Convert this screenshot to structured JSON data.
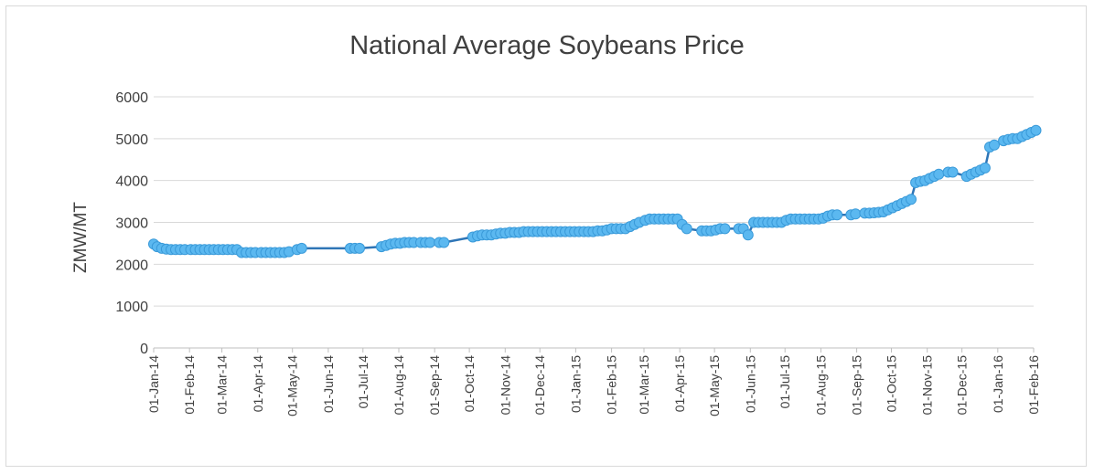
{
  "chart_data": {
    "type": "line",
    "title": "National Average Soybeans Price",
    "xlabel": "",
    "ylabel": "ZMW/MT",
    "ylim": [
      0,
      6000
    ],
    "yticks": [
      0,
      1000,
      2000,
      3000,
      4000,
      5000,
      6000
    ],
    "x_ticks": [
      "01-Jan-14",
      "01-Feb-14",
      "01-Mar-14",
      "01-Apr-14",
      "01-May-14",
      "01-Jun-14",
      "01-Jul-14",
      "01-Aug-14",
      "01-Sep-14",
      "01-Oct-14",
      "01-Nov-14",
      "01-Dec-14",
      "01-Jan-15",
      "01-Feb-15",
      "01-Mar-15",
      "01-Apr-15",
      "01-May-15",
      "01-Jun-15",
      "01-Jul-15",
      "01-Aug-15",
      "01-Sep-15",
      "01-Oct-15",
      "01-Nov-15",
      "01-Dec-15",
      "01-Jan-16",
      "01-Feb-16"
    ],
    "grid": "horizontal",
    "legend": "none",
    "colors": {
      "line": "#2e75b6",
      "marker": "#5bb8f0",
      "grid": "#d9d9d9",
      "axis": "#bfbfbf",
      "text": "#404040"
    },
    "series": [
      {
        "points": [
          [
            "2014-01-01",
            2480
          ],
          [
            "2014-01-04",
            2420
          ],
          [
            "2014-01-08",
            2380
          ],
          [
            "2014-01-12",
            2360
          ],
          [
            "2014-01-16",
            2350
          ],
          [
            "2014-01-20",
            2350
          ],
          [
            "2014-01-24",
            2350
          ],
          [
            "2014-01-28",
            2350
          ],
          [
            "2014-02-02",
            2350
          ],
          [
            "2014-02-06",
            2350
          ],
          [
            "2014-02-10",
            2350
          ],
          [
            "2014-02-14",
            2350
          ],
          [
            "2014-02-18",
            2350
          ],
          [
            "2014-02-22",
            2350
          ],
          [
            "2014-02-26",
            2350
          ],
          [
            "2014-03-02",
            2350
          ],
          [
            "2014-03-06",
            2350
          ],
          [
            "2014-03-10",
            2350
          ],
          [
            "2014-03-14",
            2350
          ],
          [
            "2014-03-18",
            2280
          ],
          [
            "2014-03-22",
            2280
          ],
          [
            "2014-03-26",
            2280
          ],
          [
            "2014-03-30",
            2280
          ],
          [
            "2014-04-04",
            2280
          ],
          [
            "2014-04-08",
            2280
          ],
          [
            "2014-04-12",
            2280
          ],
          [
            "2014-04-16",
            2280
          ],
          [
            "2014-04-20",
            2280
          ],
          [
            "2014-04-24",
            2280
          ],
          [
            "2014-04-28",
            2300
          ],
          [
            "2014-05-05",
            2350
          ],
          [
            "2014-05-09",
            2380
          ],
          [
            "2014-06-20",
            2380
          ],
          [
            "2014-06-24",
            2380
          ],
          [
            "2014-06-28",
            2380
          ],
          [
            "2014-07-17",
            2420
          ],
          [
            "2014-07-21",
            2450
          ],
          [
            "2014-07-25",
            2480
          ],
          [
            "2014-07-29",
            2500
          ],
          [
            "2014-08-02",
            2500
          ],
          [
            "2014-08-06",
            2520
          ],
          [
            "2014-08-10",
            2520
          ],
          [
            "2014-08-14",
            2520
          ],
          [
            "2014-08-20",
            2520
          ],
          [
            "2014-08-24",
            2520
          ],
          [
            "2014-08-28",
            2520
          ],
          [
            "2014-09-05",
            2520
          ],
          [
            "2014-09-09",
            2520
          ],
          [
            "2014-10-04",
            2650
          ],
          [
            "2014-10-08",
            2680
          ],
          [
            "2014-10-12",
            2700
          ],
          [
            "2014-10-16",
            2700
          ],
          [
            "2014-10-20",
            2700
          ],
          [
            "2014-10-24",
            2720
          ],
          [
            "2014-10-28",
            2740
          ],
          [
            "2014-11-01",
            2740
          ],
          [
            "2014-11-05",
            2760
          ],
          [
            "2014-11-09",
            2760
          ],
          [
            "2014-11-13",
            2760
          ],
          [
            "2014-11-17",
            2780
          ],
          [
            "2014-11-21",
            2780
          ],
          [
            "2014-11-25",
            2780
          ],
          [
            "2014-11-29",
            2780
          ],
          [
            "2014-12-03",
            2780
          ],
          [
            "2014-12-07",
            2780
          ],
          [
            "2014-12-11",
            2780
          ],
          [
            "2014-12-15",
            2780
          ],
          [
            "2014-12-19",
            2780
          ],
          [
            "2014-12-23",
            2780
          ],
          [
            "2014-12-27",
            2780
          ],
          [
            "2014-12-31",
            2780
          ],
          [
            "2015-01-04",
            2780
          ],
          [
            "2015-01-08",
            2780
          ],
          [
            "2015-01-12",
            2780
          ],
          [
            "2015-01-16",
            2780
          ],
          [
            "2015-01-20",
            2800
          ],
          [
            "2015-01-24",
            2800
          ],
          [
            "2015-01-28",
            2820
          ],
          [
            "2015-02-01",
            2850
          ],
          [
            "2015-02-05",
            2850
          ],
          [
            "2015-02-09",
            2850
          ],
          [
            "2015-02-13",
            2850
          ],
          [
            "2015-02-17",
            2900
          ],
          [
            "2015-02-21",
            2950
          ],
          [
            "2015-02-25",
            3000
          ],
          [
            "2015-03-02",
            3050
          ],
          [
            "2015-03-06",
            3080
          ],
          [
            "2015-03-10",
            3080
          ],
          [
            "2015-03-14",
            3080
          ],
          [
            "2015-03-18",
            3080
          ],
          [
            "2015-03-22",
            3080
          ],
          [
            "2015-03-26",
            3080
          ],
          [
            "2015-03-30",
            3080
          ],
          [
            "2015-04-03",
            2950
          ],
          [
            "2015-04-07",
            2850
          ],
          [
            "2015-04-20",
            2800
          ],
          [
            "2015-04-24",
            2800
          ],
          [
            "2015-04-28",
            2800
          ],
          [
            "2015-05-02",
            2820
          ],
          [
            "2015-05-06",
            2850
          ],
          [
            "2015-05-10",
            2850
          ],
          [
            "2015-05-22",
            2850
          ],
          [
            "2015-05-26",
            2850
          ],
          [
            "2015-05-30",
            2700
          ],
          [
            "2015-06-04",
            3000
          ],
          [
            "2015-06-08",
            3000
          ],
          [
            "2015-06-12",
            3000
          ],
          [
            "2015-06-16",
            3000
          ],
          [
            "2015-06-20",
            3000
          ],
          [
            "2015-06-24",
            3000
          ],
          [
            "2015-06-28",
            3000
          ],
          [
            "2015-07-02",
            3050
          ],
          [
            "2015-07-06",
            3080
          ],
          [
            "2015-07-10",
            3080
          ],
          [
            "2015-07-14",
            3080
          ],
          [
            "2015-07-18",
            3080
          ],
          [
            "2015-07-22",
            3080
          ],
          [
            "2015-07-26",
            3080
          ],
          [
            "2015-07-30",
            3080
          ],
          [
            "2015-08-03",
            3100
          ],
          [
            "2015-08-07",
            3150
          ],
          [
            "2015-08-11",
            3180
          ],
          [
            "2015-08-15",
            3180
          ],
          [
            "2015-08-27",
            3180
          ],
          [
            "2015-08-31",
            3200
          ],
          [
            "2015-09-08",
            3220
          ],
          [
            "2015-09-12",
            3220
          ],
          [
            "2015-09-16",
            3230
          ],
          [
            "2015-09-20",
            3240
          ],
          [
            "2015-09-24",
            3250
          ],
          [
            "2015-09-28",
            3300
          ],
          [
            "2015-10-02",
            3350
          ],
          [
            "2015-10-06",
            3400
          ],
          [
            "2015-10-10",
            3450
          ],
          [
            "2015-10-14",
            3500
          ],
          [
            "2015-10-18",
            3550
          ],
          [
            "2015-10-22",
            3950
          ],
          [
            "2015-10-26",
            3980
          ],
          [
            "2015-10-30",
            4000
          ],
          [
            "2015-11-03",
            4050
          ],
          [
            "2015-11-07",
            4100
          ],
          [
            "2015-11-11",
            4150
          ],
          [
            "2015-11-19",
            4200
          ],
          [
            "2015-11-23",
            4200
          ],
          [
            "2015-12-05",
            4100
          ],
          [
            "2015-12-09",
            4150
          ],
          [
            "2015-12-13",
            4200
          ],
          [
            "2015-12-17",
            4250
          ],
          [
            "2015-12-21",
            4300
          ],
          [
            "2015-12-25",
            4800
          ],
          [
            "2015-12-29",
            4850
          ],
          [
            "2016-01-06",
            4950
          ],
          [
            "2016-01-10",
            4980
          ],
          [
            "2016-01-14",
            5000
          ],
          [
            "2016-01-18",
            5000
          ],
          [
            "2016-01-22",
            5050
          ],
          [
            "2016-01-26",
            5100
          ],
          [
            "2016-01-30",
            5150
          ],
          [
            "2016-02-03",
            5200
          ]
        ]
      }
    ]
  }
}
